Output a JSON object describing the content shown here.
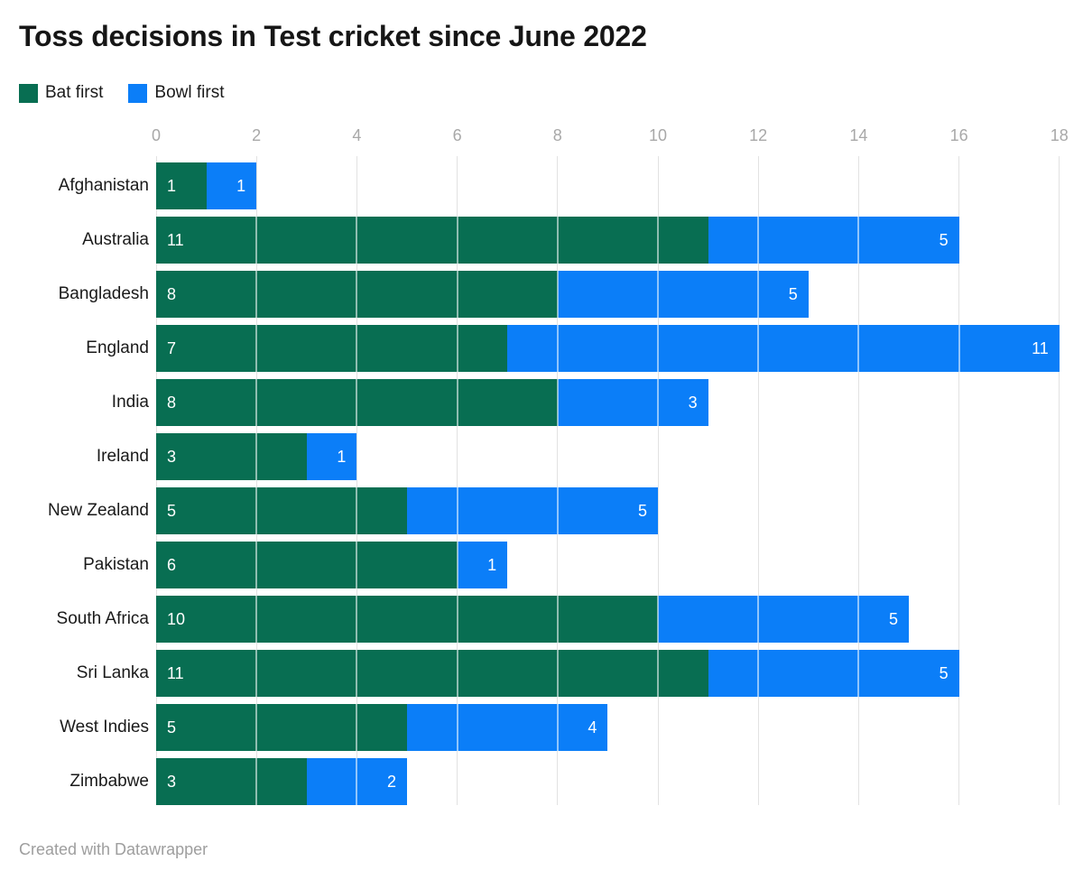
{
  "title": "Toss decisions in Test cricket since June 2022",
  "footer": "Created with Datawrapper",
  "legend": {
    "items": [
      {
        "label": "Bat first",
        "color": "#086e52"
      },
      {
        "label": "Bowl first",
        "color": "#0b7ef8"
      }
    ]
  },
  "colors": {
    "bat_first": "#086e52",
    "bowl_first": "#0b7ef8",
    "gridline": "#e2e2e2",
    "tick_text": "#a8a8a8",
    "label_text": "#1a1a1a",
    "bar_value_text": "#ffffff"
  },
  "chart_data": {
    "type": "bar",
    "orientation": "horizontal",
    "stacked": true,
    "title": "Toss decisions in Test cricket since June 2022",
    "categories": [
      "Afghanistan",
      "Australia",
      "Bangladesh",
      "England",
      "India",
      "Ireland",
      "New Zealand",
      "Pakistan",
      "South Africa",
      "Sri Lanka",
      "West Indies",
      "Zimbabwe"
    ],
    "series": [
      {
        "name": "Bat first",
        "color": "#086e52",
        "values": [
          1,
          11,
          8,
          7,
          8,
          3,
          5,
          6,
          10,
          11,
          5,
          3
        ]
      },
      {
        "name": "Bowl first",
        "color": "#0b7ef8",
        "values": [
          1,
          5,
          5,
          11,
          3,
          1,
          5,
          1,
          5,
          5,
          4,
          2
        ]
      }
    ],
    "totals": [
      2,
      16,
      13,
      18,
      11,
      4,
      10,
      7,
      15,
      16,
      9,
      5
    ],
    "xlim": [
      0,
      18
    ],
    "xticks": [
      0,
      2,
      4,
      6,
      8,
      10,
      12,
      14,
      16,
      18
    ],
    "grid": true,
    "gridlines_over_bars": true,
    "legend_position": "top-left",
    "value_labels": "inside",
    "xlabel": "",
    "ylabel": ""
  }
}
